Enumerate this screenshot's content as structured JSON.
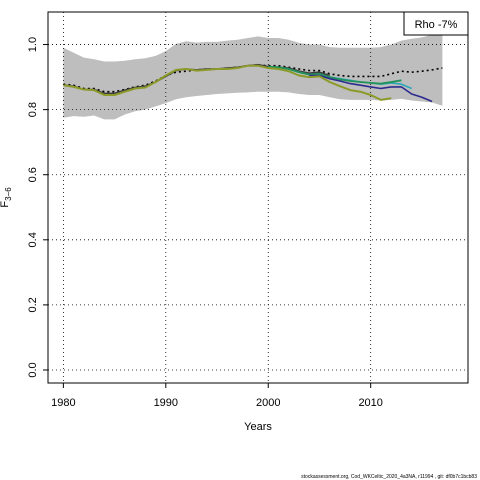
{
  "chart_data": {
    "type": "line",
    "xlabel": "Years",
    "ylabel_main": "F",
    "ylabel_sub": "3−6",
    "xlim": [
      1978.5,
      2019.5
    ],
    "ylim": [
      -0.04,
      1.1
    ],
    "x_ticks": [
      1980,
      1990,
      2000,
      2010
    ],
    "y_ticks": [
      0.0,
      0.2,
      0.4,
      0.6,
      0.8,
      1.0
    ],
    "y_tick_labels": [
      "0.0",
      "0.2",
      "0.4",
      "0.6",
      "0.8",
      "1.0"
    ],
    "grid": true,
    "legend": "Rho -7%",
    "legend_position": "top-right",
    "band": {
      "color": "#bebebe",
      "x": [
        1980,
        1981,
        1982,
        1983,
        1984,
        1985,
        1986,
        1987,
        1988,
        1989,
        1990,
        1991,
        1992,
        1993,
        1994,
        1995,
        1996,
        1997,
        1998,
        1999,
        2000,
        2001,
        2002,
        2003,
        2004,
        2005,
        2006,
        2007,
        2008,
        2009,
        2010,
        2011,
        2012,
        2013,
        2014,
        2015,
        2016,
        2017
      ],
      "upper": [
        0.99,
        0.975,
        0.96,
        0.955,
        0.948,
        0.948,
        0.95,
        0.955,
        0.958,
        0.965,
        0.98,
        1.002,
        1.01,
        1.006,
        1.008,
        1.008,
        1.012,
        1.015,
        1.02,
        1.025,
        1.02,
        1.02,
        1.015,
        1.005,
        1.0,
        1.0,
        0.992,
        0.99,
        0.99,
        0.99,
        0.99,
        0.992,
        1.0,
        1.012,
        1.018,
        1.022,
        1.03,
        1.035
      ],
      "lower": [
        0.775,
        0.78,
        0.778,
        0.782,
        0.77,
        0.77,
        0.785,
        0.795,
        0.8,
        0.81,
        0.82,
        0.832,
        0.838,
        0.842,
        0.845,
        0.848,
        0.85,
        0.852,
        0.853,
        0.855,
        0.855,
        0.855,
        0.853,
        0.848,
        0.845,
        0.845,
        0.838,
        0.832,
        0.83,
        0.83,
        0.83,
        0.828,
        0.83,
        0.833,
        0.828,
        0.825,
        0.822,
        0.812
      ]
    },
    "series": [
      {
        "color": "#000000",
        "dash": "2,3",
        "width": 1.6,
        "x": [
          1980,
          1981,
          1982,
          1983,
          1984,
          1985,
          1986,
          1987,
          1988,
          1989,
          1990,
          1991,
          1992,
          1993,
          1994,
          1995,
          1996,
          1997,
          1998,
          1999,
          2000,
          2001,
          2002,
          2003,
          2004,
          2005,
          2006,
          2007,
          2008,
          2009,
          2010,
          2011,
          2012,
          2013,
          2014,
          2015,
          2016,
          2017
        ],
        "y": [
          0.878,
          0.875,
          0.865,
          0.865,
          0.855,
          0.855,
          0.862,
          0.87,
          0.875,
          0.888,
          0.905,
          0.915,
          0.918,
          0.922,
          0.925,
          0.925,
          0.928,
          0.93,
          0.935,
          0.937,
          0.935,
          0.935,
          0.93,
          0.925,
          0.92,
          0.92,
          0.91,
          0.905,
          0.902,
          0.902,
          0.902,
          0.902,
          0.91,
          0.918,
          0.915,
          0.918,
          0.922,
          0.928
        ]
      },
      {
        "color": "#3c3c3c",
        "dash": "",
        "width": 1.6,
        "x": [
          1980,
          1981,
          1982,
          1983,
          1984,
          1985,
          1986,
          1987,
          1988,
          1989,
          1990,
          1991,
          1992,
          1993,
          1994,
          1995,
          1996,
          1997,
          1998,
          1999,
          2000,
          2001,
          2002,
          2003,
          2004,
          2005,
          2006
        ],
        "y": [
          0.875,
          0.872,
          0.862,
          0.862,
          0.85,
          0.85,
          0.86,
          0.868,
          0.872,
          0.885,
          0.902,
          0.92,
          0.925,
          0.922,
          0.925,
          0.925,
          0.928,
          0.93,
          0.935,
          0.938,
          0.932,
          0.93,
          0.928,
          0.918,
          0.912,
          0.915,
          0.905
        ]
      },
      {
        "color": "#2aa7b8",
        "dash": "",
        "width": 1.6,
        "x": [
          2000,
          2001,
          2002,
          2003,
          2004,
          2005,
          2006,
          2007,
          2008,
          2009,
          2010,
          2011,
          2012,
          2013,
          2014
        ],
        "y": [
          0.932,
          0.93,
          0.925,
          0.915,
          0.908,
          0.91,
          0.9,
          0.895,
          0.89,
          0.885,
          0.882,
          0.878,
          0.882,
          0.878,
          0.865
        ]
      },
      {
        "color": "#22915a",
        "dash": "",
        "width": 1.8,
        "x": [
          2000,
          2001,
          2002,
          2003,
          2004,
          2005,
          2006,
          2007,
          2008,
          2009,
          2010,
          2011,
          2012,
          2013
        ],
        "y": [
          0.932,
          0.93,
          0.925,
          0.915,
          0.908,
          0.91,
          0.9,
          0.893,
          0.888,
          0.885,
          0.882,
          0.88,
          0.885,
          0.89
        ]
      },
      {
        "color": "#2b2b8f",
        "dash": "",
        "width": 1.6,
        "x": [
          2004,
          2005,
          2006,
          2007,
          2008,
          2009,
          2010,
          2011,
          2012,
          2013,
          2014,
          2015,
          2016
        ],
        "y": [
          0.905,
          0.905,
          0.895,
          0.888,
          0.88,
          0.875,
          0.87,
          0.865,
          0.87,
          0.87,
          0.848,
          0.838,
          0.825
        ]
      },
      {
        "color": "#8c9a28",
        "dash": "",
        "width": 2.0,
        "x": [
          1980,
          1981,
          1982,
          1983,
          1984,
          1985,
          1986,
          1987,
          1988,
          1989,
          1990,
          1991,
          1992,
          1993,
          1994,
          1995,
          1996,
          1997,
          1998,
          1999,
          2000,
          2001,
          2002,
          2003,
          2004,
          2005,
          2006,
          2007,
          2008,
          2009,
          2010,
          2011,
          2012
        ],
        "y": [
          0.875,
          0.87,
          0.862,
          0.86,
          0.845,
          0.845,
          0.855,
          0.865,
          0.868,
          0.885,
          0.905,
          0.922,
          0.925,
          0.92,
          0.922,
          0.925,
          0.925,
          0.928,
          0.935,
          0.935,
          0.928,
          0.925,
          0.918,
          0.905,
          0.9,
          0.902,
          0.885,
          0.872,
          0.86,
          0.855,
          0.845,
          0.83,
          0.835
        ]
      }
    ]
  },
  "footer": "stockassessment.org,  Cod_WKCeltic_2020_4a3NA,  r11994 ,  git:  df0b7c1bcb83"
}
